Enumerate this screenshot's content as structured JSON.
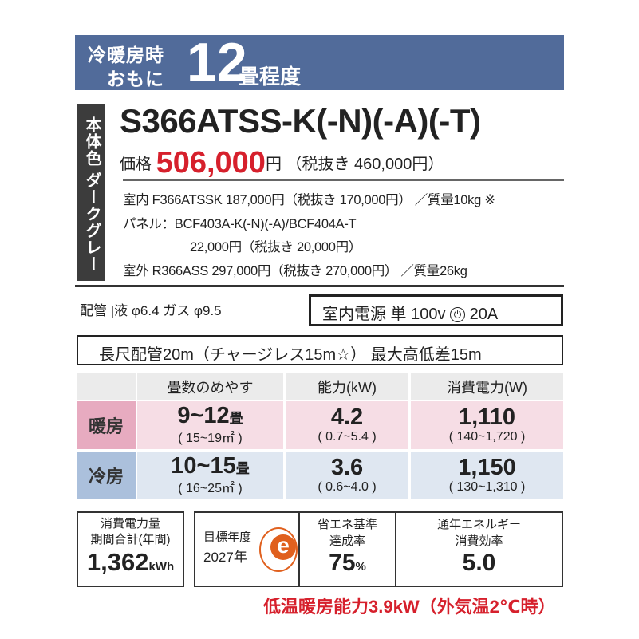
{
  "header": {
    "line1": "冷暖房時",
    "line2": "おもに",
    "tatami": "12",
    "unit": "畳程度"
  },
  "body_color": "本体色 ダークグレー",
  "model": "S366ATSS-K(-N)(-A)(-T)",
  "price": {
    "label": "価格",
    "value": "506,000",
    "yen": "円",
    "tax_excl": "（税抜き 460,000円）"
  },
  "details": {
    "indoor": "室内  F366ATSSK 187,000円（税抜き 170,000円） ／質量10kg ※",
    "panel": "パネル：BCF403A-K(-N)(-A)/BCF404A-T",
    "panel_price": "22,000円（税抜き 20,000円）",
    "outdoor": "室外  R366ASS 297,000円（税抜き 270,000円） ／質量26kg"
  },
  "piping": "配管 |液 φ6.4 ガス φ9.5",
  "power": {
    "label": "室内電源  単 100v",
    "plug": "⏻",
    "amp": "20A"
  },
  "long_pipe": "長尺配管20m（チャージレス15m☆）  最大高低差15m",
  "table": {
    "headers": [
      "畳数のめやす",
      "能力(kW)",
      "消費電力(W)"
    ],
    "rows": [
      {
        "label": "暖房",
        "tatami": "9~12",
        "tatami_unit": "畳",
        "area": "( 15~19㎡ )",
        "capacity": "4.2",
        "capacity_range": "( 0.7~5.4 )",
        "power": "1,110",
        "power_range": "( 140~1,720 )"
      },
      {
        "label": "冷房",
        "tatami": "10~15",
        "tatami_unit": "畳",
        "area": "( 16~25㎡ )",
        "capacity": "3.6",
        "capacity_range": "( 0.6~4.0 )",
        "power": "1,150",
        "power_range": "( 130~1,310 )"
      }
    ]
  },
  "annual": {
    "l1": "消費電力量",
    "l2": "期間合計(年間)",
    "value": "1,362",
    "unit": "kWh"
  },
  "target": {
    "l1": "目標年度",
    "l2": "2027年",
    "logo": "e"
  },
  "achievement": {
    "l1": "省エネ基準",
    "l2": "達成率",
    "value": "75",
    "unit": "%"
  },
  "apf": {
    "l1": "通年エネルギー",
    "l2": "消費効率",
    "value": "5.0"
  },
  "note": "低温暖房能力3.9kW（外気温2℃時）",
  "colors": {
    "header": "#516b9a",
    "red": "#d6202c",
    "heat": "#f6dde5",
    "cool": "#dfe7f1",
    "logo": "#e0601e"
  }
}
